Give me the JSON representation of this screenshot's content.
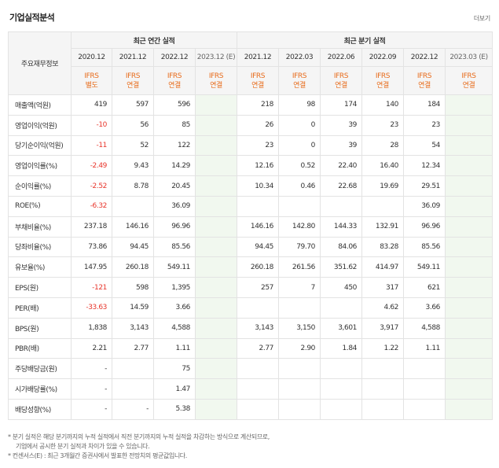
{
  "header": {
    "title": "기업실적분석",
    "more": "더보기"
  },
  "table": {
    "corner": "주요재무정보",
    "group_annual": "최근 연간 실적",
    "group_quarter": "최근 분기 실적",
    "annual_periods": [
      "2020.12",
      "2021.12",
      "2022.12",
      "2023.12 (E)"
    ],
    "quarter_periods": [
      "2021.12",
      "2022.03",
      "2022.06",
      "2022.09",
      "2022.12",
      "2023.03 (E)"
    ],
    "annual_ifrs": [
      [
        "IFRS",
        "별도"
      ],
      [
        "IFRS",
        "연결"
      ],
      [
        "IFRS",
        "연결"
      ],
      [
        "IFRS",
        "연결"
      ]
    ],
    "quarter_ifrs": [
      [
        "IFRS",
        "연결"
      ],
      [
        "IFRS",
        "연결"
      ],
      [
        "IFRS",
        "연결"
      ],
      [
        "IFRS",
        "연결"
      ],
      [
        "IFRS",
        "연결"
      ],
      [
        "IFRS",
        "연결"
      ]
    ],
    "rows": [
      {
        "label": "매출액(억원)",
        "annual": [
          "419",
          "597",
          "596",
          ""
        ],
        "quarter": [
          "218",
          "98",
          "174",
          "140",
          "184",
          ""
        ]
      },
      {
        "label": "영업이익(억원)",
        "annual": [
          "-10",
          "56",
          "85",
          ""
        ],
        "quarter": [
          "26",
          "0",
          "39",
          "23",
          "23",
          ""
        ]
      },
      {
        "label": "당기순이익(억원)",
        "annual": [
          "-11",
          "52",
          "122",
          ""
        ],
        "quarter": [
          "23",
          "0",
          "39",
          "28",
          "54",
          ""
        ]
      },
      {
        "label": "영업이익률(%)",
        "annual": [
          "-2.49",
          "9.43",
          "14.29",
          ""
        ],
        "quarter": [
          "12.16",
          "0.52",
          "22.40",
          "16.40",
          "12.34",
          ""
        ]
      },
      {
        "label": "순이익률(%)",
        "annual": [
          "-2.52",
          "8.78",
          "20.45",
          ""
        ],
        "quarter": [
          "10.34",
          "0.46",
          "22.68",
          "19.69",
          "29.51",
          ""
        ]
      },
      {
        "label": "ROE(%)",
        "annual": [
          "-6.32",
          "",
          "36.09",
          ""
        ],
        "quarter": [
          "",
          "",
          "",
          "",
          "36.09",
          ""
        ]
      },
      {
        "label": "부채비율(%)",
        "annual": [
          "237.18",
          "146.16",
          "96.96",
          ""
        ],
        "quarter": [
          "146.16",
          "142.80",
          "144.33",
          "132.91",
          "96.96",
          ""
        ]
      },
      {
        "label": "당좌비율(%)",
        "annual": [
          "73.86",
          "94.45",
          "85.56",
          ""
        ],
        "quarter": [
          "94.45",
          "79.70",
          "84.06",
          "83.28",
          "85.56",
          ""
        ]
      },
      {
        "label": "유보율(%)",
        "annual": [
          "147.95",
          "260.18",
          "549.11",
          ""
        ],
        "quarter": [
          "260.18",
          "261.56",
          "351.62",
          "414.97",
          "549.11",
          ""
        ]
      },
      {
        "label": "EPS(원)",
        "annual": [
          "-121",
          "598",
          "1,395",
          ""
        ],
        "quarter": [
          "257",
          "7",
          "450",
          "317",
          "621",
          ""
        ]
      },
      {
        "label": "PER(배)",
        "annual": [
          "-33.63",
          "14.59",
          "3.66",
          ""
        ],
        "quarter": [
          "",
          "",
          "",
          "4.62",
          "3.66",
          ""
        ]
      },
      {
        "label": "BPS(원)",
        "annual": [
          "1,838",
          "3,143",
          "4,588",
          ""
        ],
        "quarter": [
          "3,143",
          "3,150",
          "3,601",
          "3,917",
          "4,588",
          ""
        ]
      },
      {
        "label": "PBR(배)",
        "annual": [
          "2.21",
          "2.77",
          "1.11",
          ""
        ],
        "quarter": [
          "2.77",
          "2.90",
          "1.84",
          "1.22",
          "1.11",
          ""
        ]
      },
      {
        "label": "주당배당금(원)",
        "annual": [
          "-",
          "",
          "75",
          ""
        ],
        "quarter": [
          "",
          "",
          "",
          "",
          "",
          ""
        ]
      },
      {
        "label": "시가배당률(%)",
        "annual": [
          "-",
          "",
          "1.47",
          ""
        ],
        "quarter": [
          "",
          "",
          "",
          "",
          "",
          ""
        ]
      },
      {
        "label": "배당성향(%)",
        "annual": [
          "-",
          "-",
          "5.38",
          ""
        ],
        "quarter": [
          "",
          "",
          "",
          "",
          "",
          ""
        ]
      }
    ],
    "section_starts": [
      0,
      3,
      6,
      9,
      13
    ]
  },
  "notes": [
    "* 분기 실적은 해당 분기까지의 누적 실적에서 직전 분기까지의 누적 실적을 차감하는 방식으로 계산되므로,",
    "기업에서 공시한 분기 실적과 차이가 있을 수 있습니다.",
    "* 컨센서스(E) : 최근 3개월간 증권사에서 발표한 전망치의 평균값입니다."
  ],
  "colors": {
    "ifrs": "#e86c1c",
    "negative": "#e8352b",
    "estimate_bg": "#f1f8ef",
    "header_bg": "#f5f5f5"
  }
}
